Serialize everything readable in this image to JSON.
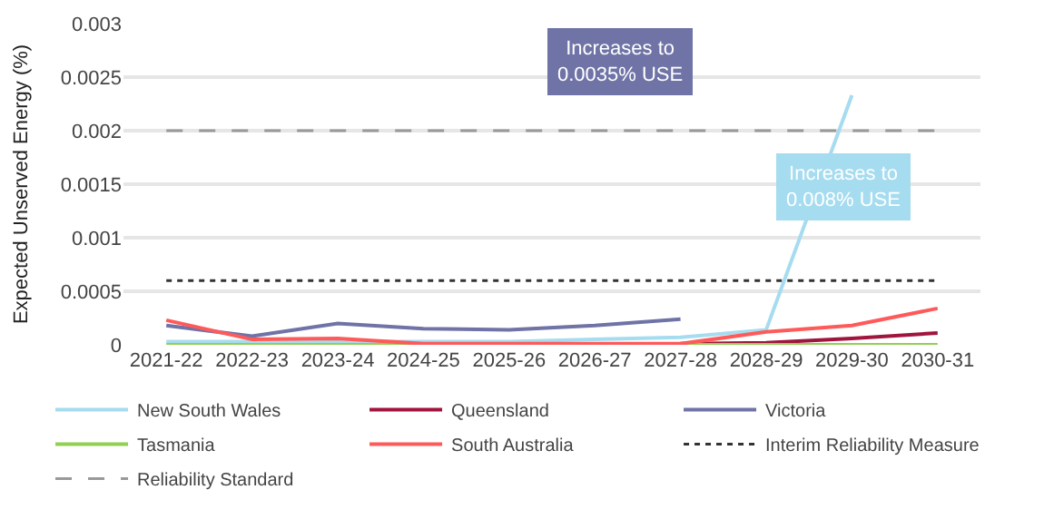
{
  "chart_data": {
    "type": "line",
    "ylabel": "Expected Unserved Energy (%)",
    "categories": [
      "2021-22",
      "2022-23",
      "2023-24",
      "2024-25",
      "2025-26",
      "2026-27",
      "2027-28",
      "2028-29",
      "2029-30",
      "2030-31"
    ],
    "series": [
      {
        "name": "New South Wales",
        "color": "#a6dcef",
        "values": [
          3e-05,
          3e-05,
          3e-05,
          3e-05,
          3e-05,
          5e-05,
          7e-05,
          0.00014,
          0.00233,
          null
        ]
      },
      {
        "name": "Queensland",
        "color": "#a0153e",
        "values": [
          null,
          null,
          null,
          null,
          null,
          null,
          1e-05,
          2e-05,
          6e-05,
          0.00011
        ]
      },
      {
        "name": "Victoria",
        "color": "#6f73a6",
        "values": [
          0.00018,
          8e-05,
          0.0002,
          0.00015,
          0.00014,
          0.00018,
          0.00024,
          null,
          null,
          null
        ]
      },
      {
        "name": "Tasmania",
        "color": "#92d050",
        "values": [
          0,
          0,
          0,
          0,
          0,
          0,
          0,
          0,
          0,
          0
        ]
      },
      {
        "name": "South Australia",
        "color": "#ff5a5a",
        "values": [
          0.00023,
          5e-05,
          6e-05,
          1e-05,
          1e-05,
          1e-05,
          1e-05,
          0.00012,
          0.00018,
          0.00034
        ]
      },
      {
        "name": "Interim Reliability Measure",
        "color": "#333333",
        "line_style": "dotted",
        "values": [
          0.0006,
          0.0006,
          0.0006,
          0.0006,
          0.0006,
          0.0006,
          0.0006,
          0.0006,
          0.0006,
          0.0006
        ]
      },
      {
        "name": "Reliability Standard",
        "color": "#999999",
        "line_style": "dashed",
        "values": [
          0.002,
          0.002,
          0.002,
          0.002,
          0.002,
          0.002,
          0.002,
          0.002,
          0.002,
          0.002
        ]
      }
    ],
    "annotations": [
      "Increases to\n0.0035% USE",
      "Increases to\n0.008% USE"
    ],
    "ylim": [
      0,
      0.003
    ],
    "yticks": [
      0,
      0.0005,
      0.001,
      0.0015,
      0.002,
      0.0025,
      0.003
    ],
    "grid": "y",
    "legend": "bottom",
    "marker": "none"
  }
}
